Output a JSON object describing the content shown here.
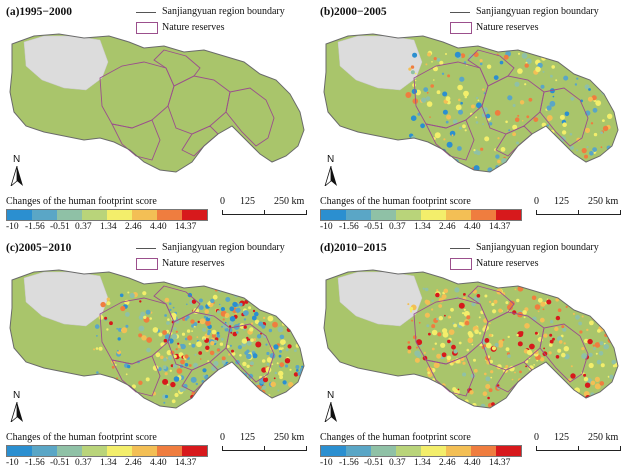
{
  "panels": [
    {
      "title": "(a)1995−2000",
      "pattern": "none"
    },
    {
      "title": "(b)2000−2005",
      "pattern": "low"
    },
    {
      "title": "(c)2005−2010",
      "pattern": "high"
    },
    {
      "title": "(d)2010−2015",
      "pattern": "mid"
    }
  ],
  "legend": {
    "boundary_label": "Sanjiangyuan region boundary",
    "reserves_label": "Nature reserves"
  },
  "north_label": "N",
  "colorbar": {
    "title": "Changes of the human footprint score",
    "labels": [
      "-10",
      "-1.56",
      "-0.51",
      "0.37",
      "1.34",
      "2.46",
      "4.40",
      "14.37"
    ],
    "colors": [
      "#2b8fd0",
      "#5aa6c6",
      "#8fc1a6",
      "#b9d47a",
      "#f3ee6b",
      "#f3bf55",
      "#ef7d3f",
      "#d7191c"
    ]
  },
  "scalebar": {
    "labels": [
      "0",
      "125",
      "250 km"
    ]
  },
  "colors": {
    "base_green": "#a9c56b",
    "no_data": "#dcdcdc",
    "boundary": "#6a6a6a",
    "reserve": "#9b4f8c"
  }
}
